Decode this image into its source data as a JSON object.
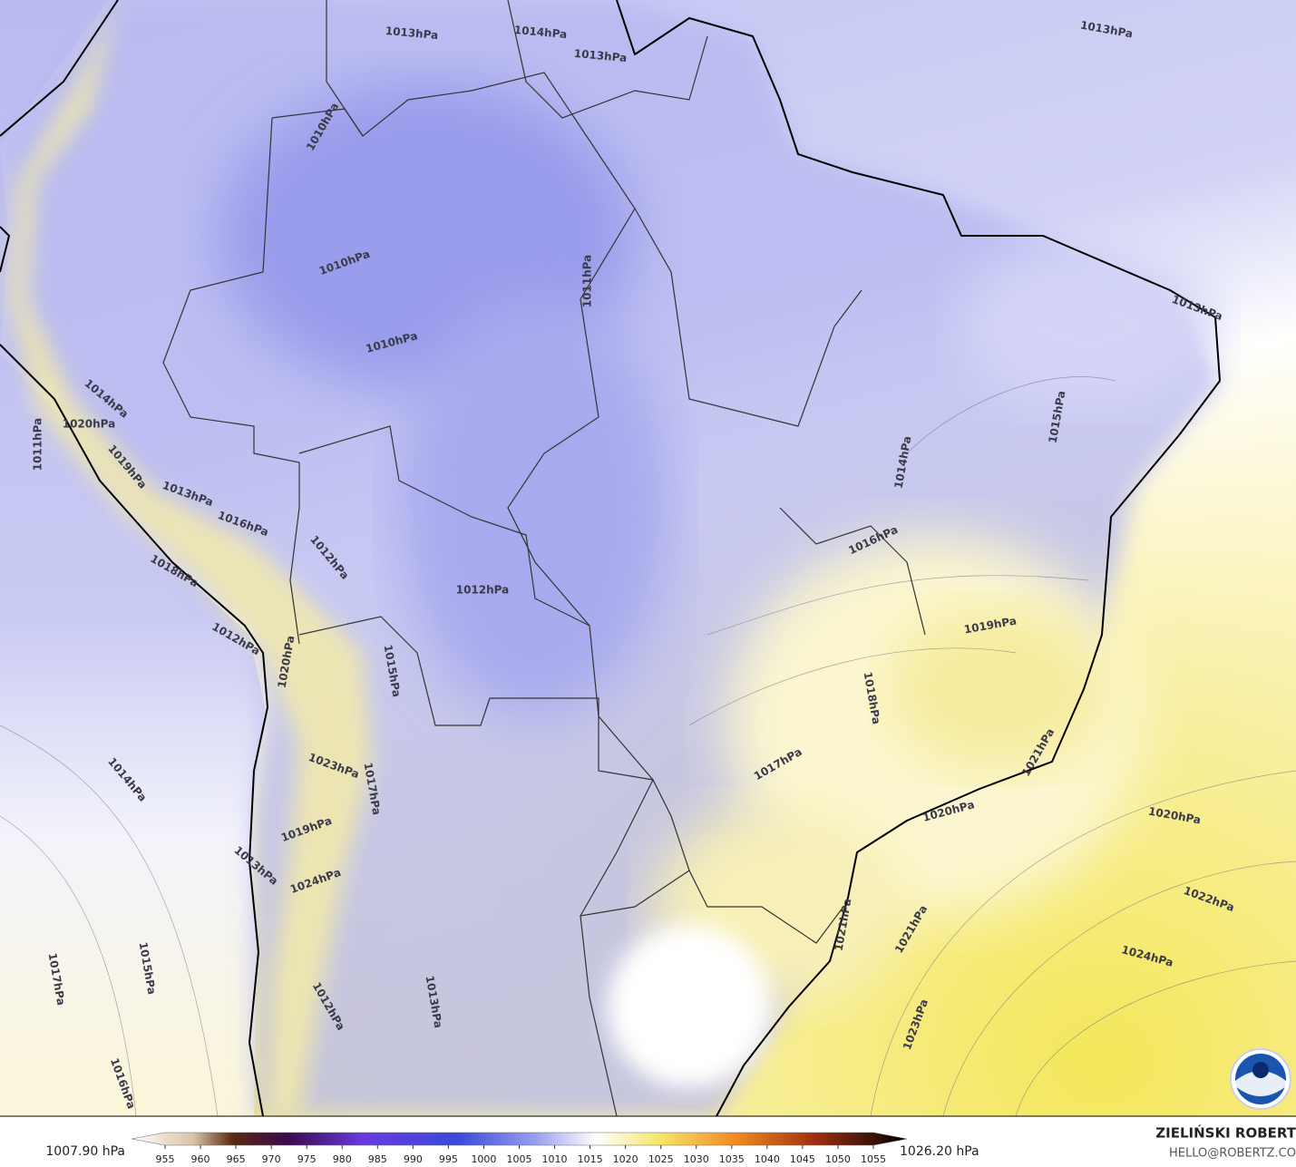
{
  "contour_labels": [
    "1013hPa",
    "1014hPa",
    "1013hPa",
    "1013hPa",
    "1010hPa",
    "1010hPa",
    "1011hPa",
    "1010hPa",
    "1013hPa",
    "1015hPa",
    "1014hPa",
    "1014hPa",
    "1020hPa",
    "1011hPa",
    "1019hPa",
    "1013hPa",
    "1016hPa",
    "1012hPa",
    "1018hPa",
    "1016hPa",
    "1012hPa",
    "1019hPa",
    "1012hPa",
    "1020hPa",
    "1015hPa",
    "1018hPa",
    "1014hPa",
    "1017hPa",
    "1023hPa",
    "1017hPa",
    "1021hPa",
    "1020hPa",
    "1020hPa",
    "1019hPa",
    "1013hPa",
    "1024hPa",
    "1022hPa",
    "1021hPa",
    "1021hPa",
    "1024hPa",
    "1015hPa",
    "1017hPa",
    "1013hPa",
    "1012hPa",
    "1023hPa",
    "1016hPa"
  ],
  "colorbar": {
    "min_label": "1007.90 hPa",
    "max_label": "1026.20 hPa",
    "ticks": [
      955,
      960,
      965,
      970,
      975,
      980,
      985,
      990,
      995,
      1000,
      1005,
      1010,
      1015,
      1020,
      1025,
      1030,
      1035,
      1040,
      1045,
      1050,
      1055
    ]
  },
  "credits": {
    "author": "ZIELIŃSKI ROBERT",
    "email": "HELLO@ROBERTZ.CO"
  }
}
